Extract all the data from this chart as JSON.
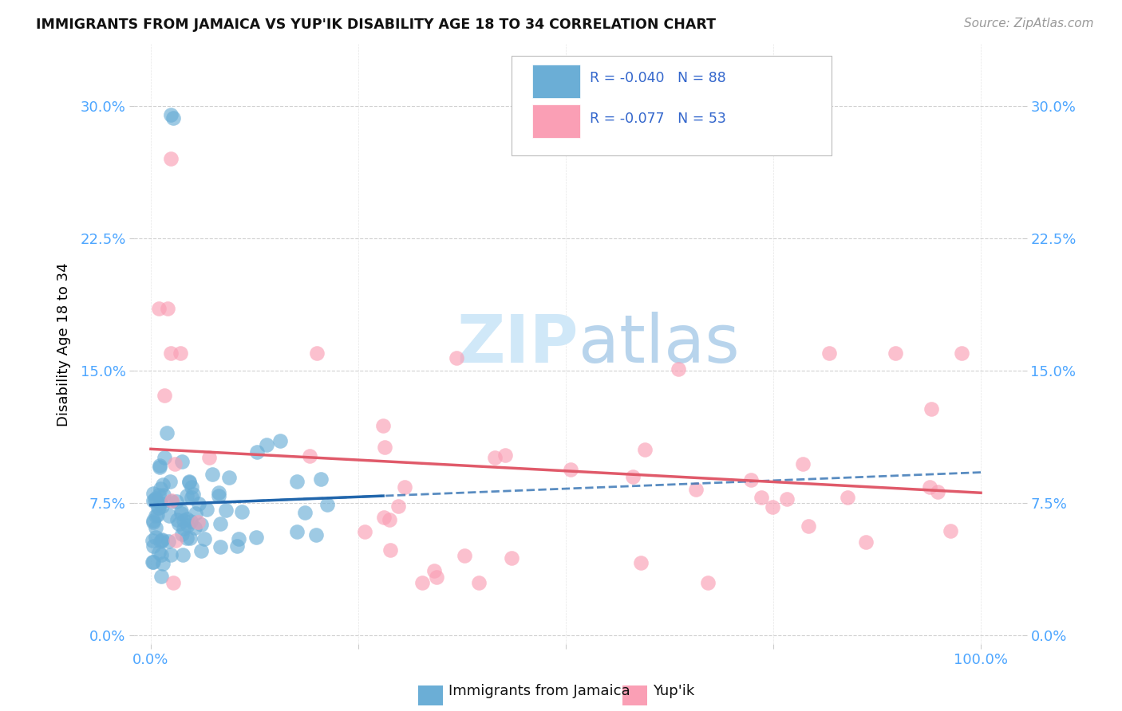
{
  "title": "IMMIGRANTS FROM JAMAICA VS YUP'IK DISABILITY AGE 18 TO 34 CORRELATION CHART",
  "source": "Source: ZipAtlas.com",
  "ylabel": "Disability Age 18 to 34",
  "xlim": [
    -0.02,
    1.05
  ],
  "ylim": [
    -0.005,
    0.335
  ],
  "yticks": [
    0.0,
    0.075,
    0.15,
    0.225,
    0.3
  ],
  "ytick_labels": [
    "0.0%",
    "7.5%",
    "15.0%",
    "22.5%",
    "30.0%"
  ],
  "xticks": [
    0.0,
    0.25,
    0.5,
    0.75,
    1.0
  ],
  "xtick_labels": [
    "0.0%",
    "",
    "",
    "",
    "100.0%"
  ],
  "blue_color": "#6baed6",
  "blue_edge_color": "#4292c6",
  "pink_color": "#fa9fb5",
  "pink_edge_color": "#f768a1",
  "blue_line_color": "#2166ac",
  "pink_line_color": "#e05a6a",
  "tick_color": "#4da6ff",
  "watermark_color": "#d0e8f8"
}
